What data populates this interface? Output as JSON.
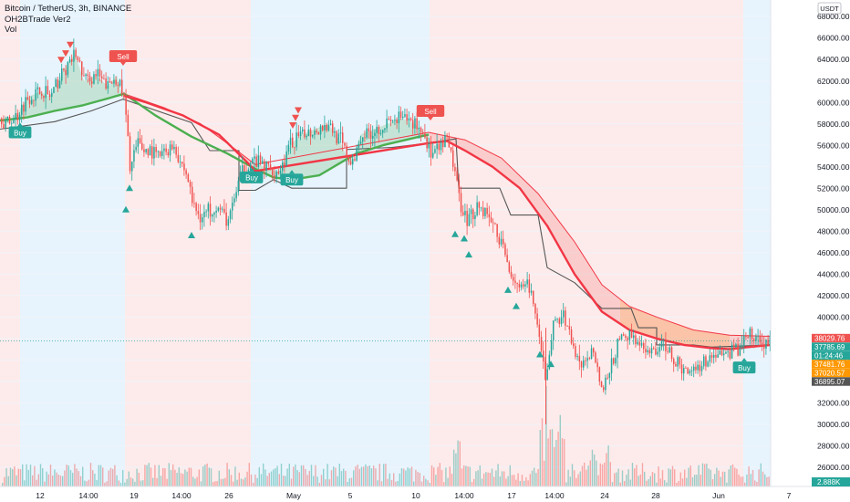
{
  "legend": {
    "title": "Bitcoin / TetherUS, 3h, BINANCE",
    "indicator": "OH2BTrade Ver2",
    "volume": "Vol"
  },
  "currency_badge": "USDT",
  "colors": {
    "up": "#26a69a",
    "down": "#ef5350",
    "bg_red": "#fde8e8",
    "bg_blue": "#e3f2fd",
    "green_line": "#4caf50",
    "red_line": "#f23645",
    "trail_line": "#555555",
    "orange": "#ff9800"
  },
  "chart_data": {
    "type": "candlestick",
    "y_axis": {
      "min": 24000,
      "max": 69000,
      "ticks": [
        26000,
        28000,
        30000,
        32000,
        34000,
        36000,
        38000,
        40000,
        42000,
        44000,
        46000,
        48000,
        50000,
        52000,
        54000,
        56000,
        58000,
        60000,
        62000,
        64000,
        66000,
        68000
      ],
      "tick_labels": [
        "26000.00",
        "28000.00",
        "30000.00",
        "32000.00",
        "34000.00",
        "36000.00",
        "38000.00",
        "40000.00",
        "42000.00",
        "44000.00",
        "46000.00",
        "48000.00",
        "50000.00",
        "52000.00",
        "54000.00",
        "56000.00",
        "58000.00",
        "60000.00",
        "62000.00",
        "64000.00",
        "66000.00",
        "68000.00"
      ]
    },
    "x_axis": {
      "labels": [
        "12",
        "14:00",
        "19",
        "14:00",
        "26",
        "May",
        "5",
        "10",
        "14:00",
        "17",
        "14:00",
        "24",
        "28",
        "Jun",
        "7"
      ]
    },
    "price_labels": [
      {
        "value": "38029.76",
        "color": "#ef5350",
        "price": 38030
      },
      {
        "value": "37785.69",
        "color": "#26a69a",
        "price": 37786
      },
      {
        "value": "01:24:46",
        "color": "#26a69a",
        "price": 37786
      },
      {
        "value": "37481.76",
        "color": "#ff9800",
        "price": 37482
      },
      {
        "value": "37020.57",
        "color": "#ff9800",
        "price": 37021
      },
      {
        "value": "36895.07",
        "color": "#555555",
        "price": 36895
      }
    ],
    "volume_label": "2.888K",
    "close_path": [
      [
        0,
        58500
      ],
      [
        8,
        58000
      ],
      [
        18,
        58800
      ],
      [
        30,
        60500
      ],
      [
        45,
        61000
      ],
      [
        55,
        60500
      ],
      [
        70,
        63000
      ],
      [
        82,
        64500
      ],
      [
        92,
        62000
      ],
      [
        105,
        62500
      ],
      [
        118,
        61500
      ],
      [
        128,
        62500
      ],
      [
        136,
        60000
      ],
      [
        142,
        54000
      ],
      [
        150,
        56000
      ],
      [
        160,
        55500
      ],
      [
        175,
        55000
      ],
      [
        190,
        56000
      ],
      [
        205,
        53000
      ],
      [
        212,
        50000
      ],
      [
        222,
        49500
      ],
      [
        235,
        50500
      ],
      [
        250,
        49000
      ],
      [
        262,
        53000
      ],
      [
        275,
        54500
      ],
      [
        290,
        54000
      ],
      [
        305,
        53500
      ],
      [
        318,
        56000
      ],
      [
        330,
        57000
      ],
      [
        345,
        57500
      ],
      [
        360,
        58000
      ],
      [
        372,
        56500
      ],
      [
        385,
        54000
      ],
      [
        395,
        57000
      ],
      [
        410,
        57500
      ],
      [
        425,
        58000
      ],
      [
        440,
        58500
      ],
      [
        455,
        58000
      ],
      [
        465,
        57000
      ],
      [
        472,
        55000
      ],
      [
        480,
        55500
      ],
      [
        488,
        56500
      ],
      [
        495,
        55000
      ],
      [
        503,
        51000
      ],
      [
        512,
        49000
      ],
      [
        522,
        50500
      ],
      [
        535,
        49500
      ],
      [
        548,
        47000
      ],
      [
        560,
        44000
      ],
      [
        572,
        42500
      ],
      [
        580,
        43000
      ],
      [
        590,
        38000
      ],
      [
        598,
        34000
      ],
      [
        605,
        39000
      ],
      [
        615,
        40500
      ],
      [
        625,
        38000
      ],
      [
        632,
        36000
      ],
      [
        640,
        35500
      ],
      [
        650,
        37000
      ],
      [
        660,
        33000
      ],
      [
        668,
        35000
      ],
      [
        680,
        38000
      ],
      [
        692,
        38500
      ],
      [
        705,
        36500
      ],
      [
        718,
        37000
      ],
      [
        730,
        37500
      ],
      [
        742,
        35500
      ],
      [
        752,
        35000
      ],
      [
        765,
        35500
      ],
      [
        780,
        36500
      ],
      [
        795,
        36500
      ],
      [
        808,
        37000
      ],
      [
        818,
        38500
      ],
      [
        826,
        38000
      ],
      [
        835,
        37500
      ],
      [
        844,
        37786
      ]
    ],
    "green_ma": [
      [
        0,
        58300
      ],
      [
        30,
        58600
      ],
      [
        60,
        59200
      ],
      [
        90,
        59700
      ],
      [
        120,
        60400
      ],
      [
        136,
        60800
      ],
      [
        170,
        58800
      ],
      [
        210,
        56800
      ],
      [
        250,
        55200
      ],
      [
        280,
        53800
      ],
      [
        300,
        53000
      ],
      [
        320,
        52800
      ],
      [
        350,
        53200
      ],
      [
        370,
        54200
      ],
      [
        390,
        55200
      ],
      [
        420,
        56000
      ],
      [
        450,
        56600
      ],
      [
        470,
        57000
      ]
    ],
    "red_ma": [
      [
        136,
        60600
      ],
      [
        160,
        60000
      ],
      [
        200,
        58800
      ],
      [
        240,
        57000
      ],
      [
        270,
        54500
      ],
      [
        280,
        53600
      ],
      [
        470,
        56200
      ],
      [
        490,
        56400
      ],
      [
        510,
        55500
      ],
      [
        540,
        54000
      ],
      [
        570,
        52000
      ],
      [
        600,
        48500
      ],
      [
        630,
        44000
      ],
      [
        660,
        40500
      ],
      [
        690,
        38800
      ],
      [
        720,
        38000
      ],
      [
        750,
        37400
      ],
      [
        780,
        37100
      ],
      [
        800,
        37000
      ],
      [
        820,
        37200
      ],
      [
        845,
        37400
      ]
    ],
    "slow_line": [
      [
        136,
        60800
      ],
      [
        180,
        59500
      ],
      [
        220,
        58000
      ],
      [
        260,
        55500
      ],
      [
        280,
        54200
      ],
      [
        470,
        57200
      ],
      [
        510,
        56500
      ],
      [
        550,
        54800
      ],
      [
        590,
        51500
      ],
      [
        630,
        47000
      ],
      [
        660,
        43000
      ],
      [
        690,
        41000
      ],
      [
        720,
        40000
      ],
      [
        760,
        38800
      ],
      [
        800,
        38300
      ],
      [
        845,
        38200
      ]
    ],
    "trail_line": [
      [
        0,
        57500
      ],
      [
        60,
        58200
      ],
      [
        100,
        59200
      ],
      [
        135,
        60300
      ],
      [
        210,
        58100
      ],
      [
        230,
        55500
      ],
      [
        262,
        55500
      ],
      [
        262,
        51800
      ],
      [
        280,
        51800
      ],
      [
        300,
        52800
      ],
      [
        320,
        52000
      ],
      [
        380,
        52000
      ],
      [
        380,
        55600
      ],
      [
        430,
        55800
      ],
      [
        470,
        56200
      ],
      [
        500,
        56600
      ],
      [
        503,
        52000
      ],
      [
        548,
        52000
      ],
      [
        560,
        49500
      ],
      [
        590,
        49500
      ],
      [
        600,
        44600
      ],
      [
        630,
        43200
      ],
      [
        660,
        40800
      ],
      [
        692,
        40800
      ],
      [
        700,
        39000
      ],
      [
        720,
        39000
      ],
      [
        720,
        37400
      ],
      [
        760,
        37400
      ],
      [
        780,
        37200
      ],
      [
        845,
        37400
      ]
    ],
    "buy_labels": [
      [
        22,
        57200,
        "Buy"
      ],
      [
        276,
        53000,
        "Buy"
      ],
      [
        320,
        52800,
        "Buy"
      ],
      [
        816,
        35300,
        "Buy"
      ]
    ],
    "sell_labels": [
      [
        135,
        64300,
        "Sell"
      ],
      [
        472,
        59200,
        "Sell"
      ]
    ],
    "down_arrows": [
      [
        67,
        63900
      ],
      [
        72,
        64500
      ],
      [
        77,
        65300
      ],
      [
        321,
        57800
      ],
      [
        324,
        58500
      ],
      [
        327,
        59200
      ]
    ],
    "up_arrows": [
      [
        142,
        52000
      ],
      [
        138,
        50000
      ],
      [
        210,
        47600
      ],
      [
        499,
        47700
      ],
      [
        509,
        47300
      ],
      [
        514,
        45800
      ],
      [
        557,
        42500
      ],
      [
        566,
        41000
      ],
      [
        592,
        36500
      ],
      [
        604,
        35600
      ]
    ],
    "background_zones": [
      [
        0,
        22,
        "red"
      ],
      [
        22,
        137,
        "blue"
      ],
      [
        137,
        275,
        "red"
      ],
      [
        275,
        471,
        "blue"
      ],
      [
        471,
        815,
        "red"
      ],
      [
        815,
        845,
        "blue"
      ]
    ]
  }
}
